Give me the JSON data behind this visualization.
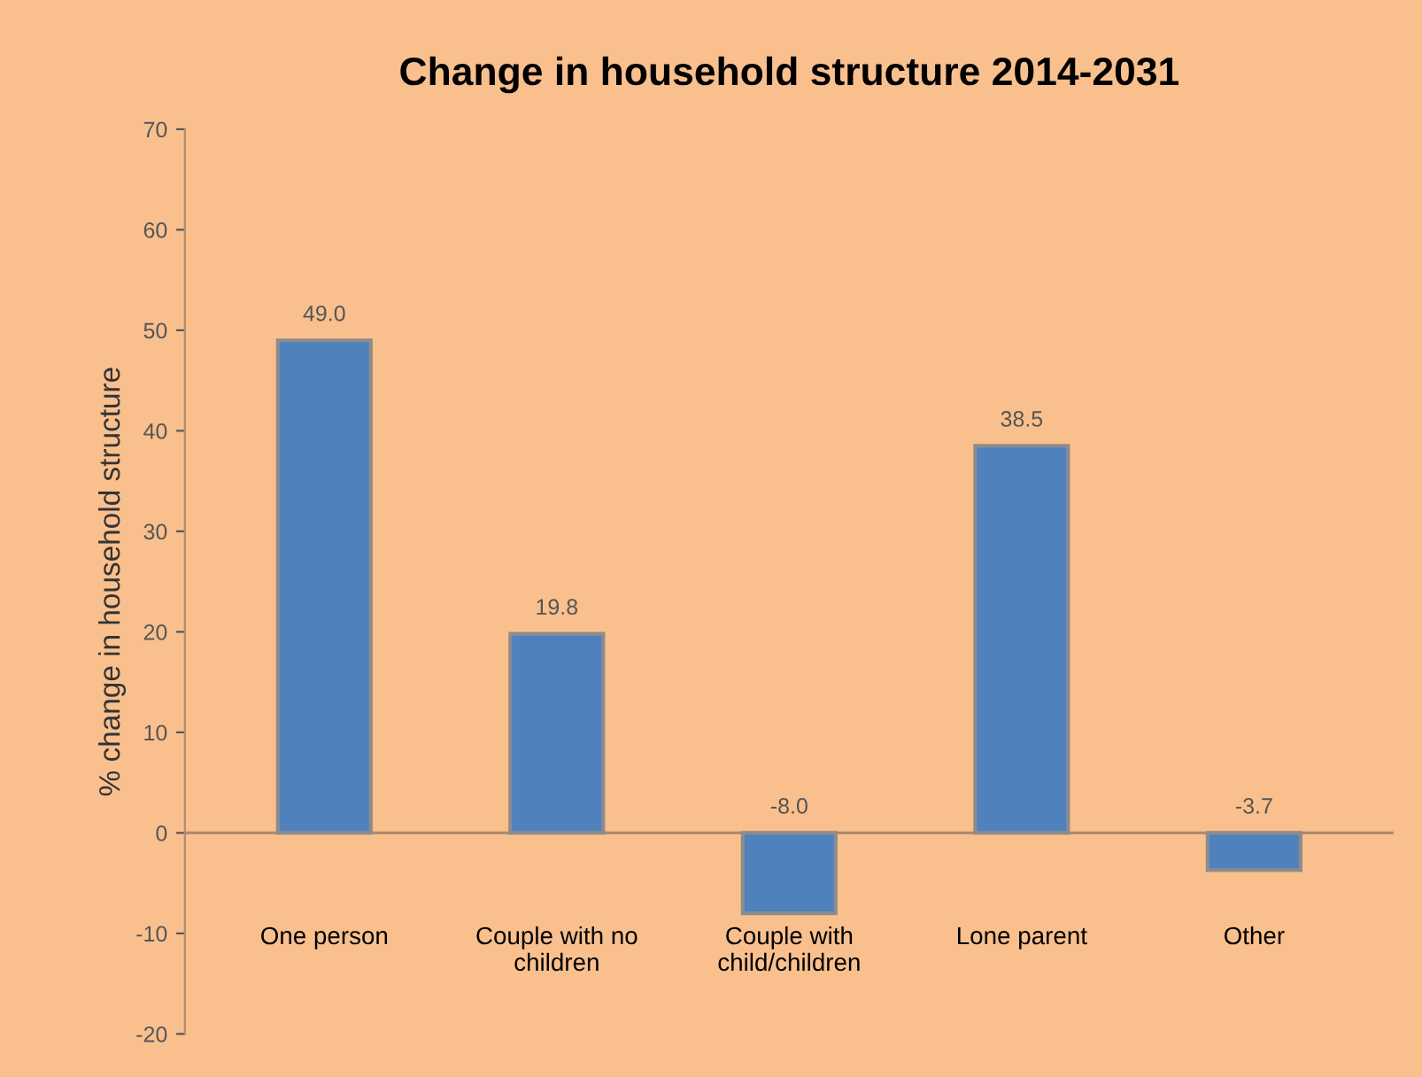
{
  "chart_data": {
    "type": "bar",
    "title": "Change in household structure 2014-2031",
    "ylabel": "% change in household structure",
    "categories": [
      "One person",
      "Couple with no\nchildren",
      "Couple with\nchild/children",
      "Lone parent",
      "Other"
    ],
    "values": [
      49.0,
      19.8,
      -8.0,
      38.5,
      -3.7
    ],
    "value_labels": [
      "49.0",
      "19.8",
      "-8.0",
      "38.5",
      "-3.7"
    ],
    "color": "#4f81bd",
    "ylim": [
      -20,
      70
    ],
    "yticks": [
      -20,
      -10,
      0,
      10,
      20,
      30,
      40,
      50,
      60,
      70
    ],
    "grid": false,
    "ref_lines": [
      {
        "axis": "y",
        "value": 0,
        "color": "#b08a70"
      }
    ]
  }
}
